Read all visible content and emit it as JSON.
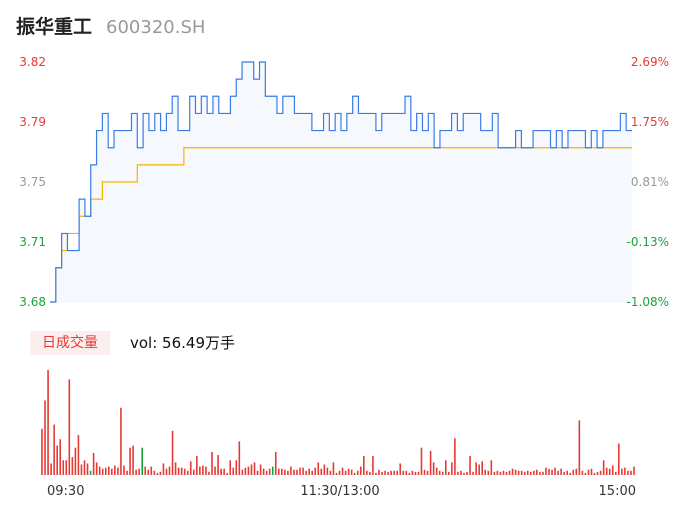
{
  "header": {
    "name": "振华重工",
    "code": "600320.SH"
  },
  "volume_panel": {
    "badge": "日成交量",
    "vol_label": "vol: 56.49万手"
  },
  "colors": {
    "price_line": "#3b7be8",
    "avg_line": "#f5b400",
    "up": "#e53935",
    "down": "#1aa33c",
    "neutral": "#999999"
  },
  "chart_data": [
    {
      "type": "line",
      "title": "",
      "y_ticks_left": [
        "3.82",
        "3.79",
        "3.75",
        "3.71",
        "3.68"
      ],
      "y_ticks_right": [
        "2.69%",
        "1.75%",
        "0.81%",
        "-0.13%",
        "-1.08%"
      ],
      "ylim": [
        3.68,
        3.82
      ],
      "x_ticks": [
        "09:30",
        "11:30/13:00",
        "15:00"
      ],
      "series": [
        {
          "values": [
            3.68,
            3.7,
            3.72,
            3.71,
            3.71,
            3.74,
            3.73,
            3.76,
            3.78,
            3.79,
            3.77,
            3.78,
            3.78,
            3.78,
            3.79,
            3.77,
            3.79,
            3.78,
            3.79,
            3.78,
            3.79,
            3.8,
            3.78,
            3.78,
            3.8,
            3.79,
            3.8,
            3.79,
            3.8,
            3.79,
            3.79,
            3.8,
            3.81,
            3.82,
            3.82,
            3.81,
            3.82,
            3.8,
            3.8,
            3.79,
            3.8,
            3.8,
            3.79,
            3.79,
            3.79,
            3.78,
            3.78,
            3.79,
            3.78,
            3.79,
            3.78,
            3.79,
            3.8,
            3.79,
            3.79,
            3.79,
            3.78,
            3.79,
            3.79,
            3.79,
            3.79,
            3.8,
            3.78,
            3.79,
            3.78,
            3.79,
            3.77,
            3.78,
            3.78,
            3.79,
            3.78,
            3.79,
            3.79,
            3.79,
            3.78,
            3.78,
            3.79,
            3.77,
            3.77,
            3.77,
            3.78,
            3.77,
            3.77,
            3.78,
            3.78,
            3.78,
            3.77,
            3.78,
            3.77,
            3.78,
            3.78,
            3.78,
            3.77,
            3.78,
            3.77,
            3.78,
            3.78,
            3.78,
            3.79,
            3.78,
            3.78
          ]
        },
        {
          "values": [
            3.68,
            3.7,
            3.71,
            3.72,
            3.72,
            3.73,
            3.73,
            3.74,
            3.74,
            3.75,
            3.75,
            3.75,
            3.75,
            3.75,
            3.75,
            3.76,
            3.76,
            3.76,
            3.76,
            3.76,
            3.76,
            3.76,
            3.76,
            3.77,
            3.77,
            3.77,
            3.77,
            3.77,
            3.77,
            3.77,
            3.77,
            3.77,
            3.77,
            3.77,
            3.77,
            3.77,
            3.77,
            3.77,
            3.77,
            3.77,
            3.77,
            3.77,
            3.77,
            3.77,
            3.77,
            3.77,
            3.77,
            3.77,
            3.77,
            3.77,
            3.77,
            3.77,
            3.77,
            3.77,
            3.77,
            3.77,
            3.77,
            3.77,
            3.77,
            3.77,
            3.77,
            3.77,
            3.77,
            3.77,
            3.77,
            3.77,
            3.77,
            3.77,
            3.77,
            3.77,
            3.77,
            3.77,
            3.77,
            3.77,
            3.77,
            3.77,
            3.77,
            3.77,
            3.77,
            3.77,
            3.77,
            3.77,
            3.77,
            3.77,
            3.77,
            3.77,
            3.77,
            3.77,
            3.77,
            3.77,
            3.77,
            3.77,
            3.77,
            3.77,
            3.77,
            3.77,
            3.77,
            3.77,
            3.77,
            3.77,
            3.77
          ]
        }
      ]
    },
    {
      "type": "bar",
      "title": "",
      "series": [
        {
          "values": [
            44,
            71,
            100,
            11,
            48,
            28,
            34,
            14,
            14,
            91,
            17,
            26,
            38,
            10,
            14,
            11,
            9,
            21,
            12,
            8,
            6,
            7,
            8,
            6,
            9,
            7,
            64,
            9,
            4,
            26,
            28,
            5,
            6,
            24,
            8,
            5,
            8,
            4,
            2,
            3,
            11,
            6,
            8,
            42,
            12,
            7,
            7,
            6,
            4,
            13,
            5,
            18,
            8,
            9,
            8,
            3,
            22,
            8,
            19,
            6,
            6,
            2,
            14,
            7,
            14,
            32,
            5,
            7,
            8,
            10,
            12,
            4,
            10,
            6,
            4,
            6,
            12,
            22,
            6,
            6,
            5,
            4,
            8,
            5,
            5,
            7,
            7,
            4,
            6,
            4,
            7,
            12,
            6,
            10,
            7,
            4,
            12,
            2,
            4,
            7,
            4,
            6,
            5,
            2,
            4,
            8,
            18,
            4,
            3,
            18,
            2,
            5,
            3,
            4,
            3,
            4,
            4,
            4,
            11,
            4,
            4,
            2,
            4,
            3,
            3,
            26,
            5,
            4,
            23,
            12,
            7,
            4,
            3,
            14,
            3,
            12,
            35,
            3,
            4,
            2,
            3,
            18,
            3,
            12,
            10,
            13,
            5,
            4,
            14,
            3,
            4,
            3,
            4,
            3,
            4,
            6,
            5,
            4,
            4,
            3,
            4,
            3,
            4,
            5,
            3,
            3,
            7,
            6,
            5,
            7,
            4,
            6,
            3,
            4,
            2,
            5,
            6,
            52,
            4,
            2,
            5,
            6,
            2,
            3,
            4,
            14,
            7,
            6,
            9,
            3,
            30,
            6,
            7,
            4,
            4,
            8
          ]
        },
        {
          "values": [
            0,
            0,
            0,
            0,
            0,
            0,
            0,
            0,
            0,
            0,
            0,
            0,
            0,
            0,
            0,
            0,
            4,
            0,
            0,
            0,
            0,
            0,
            0,
            0,
            0,
            0,
            0,
            0,
            0,
            0,
            0,
            0,
            0,
            26,
            0,
            0,
            0,
            0,
            0,
            0,
            0,
            0,
            0,
            0,
            0,
            0,
            0,
            0,
            0,
            0,
            0,
            0,
            0,
            0,
            0,
            0,
            0,
            0,
            0,
            0,
            0,
            0,
            0,
            0,
            0,
            0,
            0,
            0,
            0,
            0,
            0,
            0,
            0,
            0,
            0,
            0,
            8,
            0,
            0,
            0,
            0,
            0,
            0,
            0,
            0,
            0,
            0,
            0,
            0,
            0,
            0,
            0,
            0,
            0,
            0,
            0,
            0,
            0,
            0,
            0,
            0,
            0,
            0,
            0,
            0,
            0,
            0,
            0,
            0,
            0,
            0,
            0,
            0,
            0,
            0,
            0,
            0,
            0,
            0,
            0,
            0,
            0,
            0,
            0,
            0,
            0,
            0,
            0,
            0,
            0,
            0,
            0,
            0,
            0,
            0,
            0,
            0,
            0,
            0,
            0,
            0,
            0,
            0,
            0,
            0,
            0,
            0,
            0,
            0,
            0,
            0,
            0,
            0,
            0,
            0,
            0,
            0,
            0,
            0,
            0,
            0,
            0,
            0,
            0,
            0,
            0,
            0,
            0,
            0,
            0,
            0,
            0,
            0,
            0,
            0,
            0,
            0,
            0,
            0,
            0,
            0,
            0,
            0,
            0,
            0,
            0,
            0,
            0,
            0,
            0,
            0,
            0,
            0,
            0,
            0,
            0,
            0,
            0
          ]
        }
      ]
    }
  ]
}
